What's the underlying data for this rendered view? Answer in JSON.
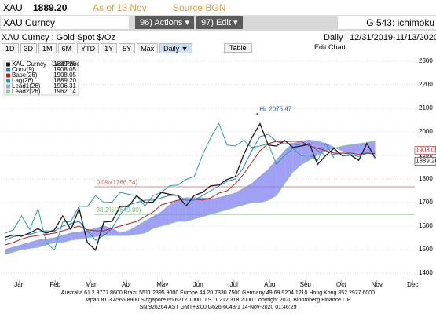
{
  "header": {
    "ticker": "XAU",
    "price": "1889.20",
    "as_of": "As of 13 Nov",
    "source": "Source BGN",
    "security": "XAU Curncy",
    "actions": "96) Actions ▾",
    "edit": "97) Edit ▾",
    "page": "G 543: ichimoku",
    "description": "XAU Curncy : Gold Spot $/Oz",
    "frequency": "Daily",
    "range": "12/31/2019-11/13/2020"
  },
  "toolbar": {
    "periods": [
      "1D",
      "3D",
      "1M",
      "6M",
      "YTD",
      "1Y",
      "5Y",
      "Max"
    ],
    "interval": "Daily ▼",
    "table": "Table",
    "edit_chart": "Edit Chart"
  },
  "chart_data": {
    "type": "line",
    "year_label": "2020",
    "x": [
      0.1,
      0.33,
      0.56,
      0.79,
      1.02,
      1.25,
      1.48,
      1.71,
      1.94,
      2.17,
      2.4,
      2.63,
      2.86,
      3.09,
      3.32,
      3.55,
      3.78,
      4.01,
      4.24,
      4.47,
      4.7,
      4.93,
      5.16,
      5.39,
      5.62,
      5.85,
      6.08,
      6.31,
      6.54,
      6.77,
      7.0,
      7.23,
      7.46,
      7.69,
      7.92,
      8.15,
      8.38,
      8.61,
      8.84,
      9.07,
      9.3,
      9.53,
      9.76,
      9.99,
      10.22,
      10.45
    ],
    "xlim": [
      0,
      11.56
    ],
    "xticks": [
      {
        "value": 0.5,
        "label": "Jan"
      },
      {
        "value": 1.5,
        "label": "Feb"
      },
      {
        "value": 2.5,
        "label": "Mar"
      },
      {
        "value": 3.5,
        "label": "Apr"
      },
      {
        "value": 4.5,
        "label": "May"
      },
      {
        "value": 5.5,
        "label": "Jun"
      },
      {
        "value": 6.5,
        "label": "Jul"
      },
      {
        "value": 7.5,
        "label": "Aug"
      },
      {
        "value": 8.5,
        "label": "Sep"
      },
      {
        "value": 9.5,
        "label": "Oct"
      },
      {
        "value": 10.5,
        "label": "Nov"
      },
      {
        "value": 11.5,
        "label": "Dec"
      }
    ],
    "ylim": [
      1370,
      2330
    ],
    "yticks": [
      1400,
      1500,
      1600,
      1700,
      1800,
      1900,
      2000,
      2100,
      2200,
      2300
    ],
    "grid": true,
    "series": [
      {
        "name": "XAU Curncy - Last Price",
        "last": {
          "value": 1889.2,
          "label": "1889.20"
        },
        "color": "#1a1a1a",
        "values": [
          1552,
          1562,
          1557,
          1571,
          1589,
          1570,
          1584,
          1643,
          1585,
          1674,
          1530,
          1498,
          1617,
          1620,
          1684,
          1683,
          1729,
          1700,
          1702,
          1743,
          1735,
          1730,
          1685,
          1730,
          1743,
          1771,
          1774,
          1798,
          1810,
          1902,
          1975,
          2035,
          1944,
          1940,
          1964,
          1934,
          1940,
          1950,
          1862,
          1900,
          1930,
          1899,
          1902,
          1879,
          1951,
          1889
        ]
      },
      {
        "name": "Conv(9)",
        "last": {
          "value": 1908.05,
          "label": "1908.05"
        },
        "color": "#2b7fb8",
        "values": [
          1540,
          1555,
          1560,
          1565,
          1575,
          1580,
          1578,
          1600,
          1610,
          1620,
          1580,
          1540,
          1560,
          1590,
          1650,
          1690,
          1700,
          1710,
          1710,
          1720,
          1730,
          1730,
          1710,
          1710,
          1730,
          1750,
          1770,
          1790,
          1800,
          1850,
          1920,
          1980,
          1990,
          1960,
          1950,
          1950,
          1940,
          1945,
          1920,
          1900,
          1905,
          1910,
          1905,
          1895,
          1910,
          1908
        ]
      },
      {
        "name": "Base(26)",
        "last": {
          "value": 1908.05,
          "label": "1908.05"
        },
        "color": "#b22222",
        "values": [
          1520,
          1530,
          1545,
          1555,
          1560,
          1565,
          1570,
          1580,
          1590,
          1600,
          1585,
          1580,
          1580,
          1590,
          1600,
          1610,
          1620,
          1640,
          1660,
          1690,
          1700,
          1710,
          1715,
          1715,
          1710,
          1720,
          1740,
          1750,
          1780,
          1820,
          1870,
          1920,
          1950,
          1960,
          1960,
          1960,
          1960,
          1940,
          1930,
          1920,
          1910,
          1910,
          1910,
          1905,
          1910,
          1908
        ]
      },
      {
        "name": "Lag(26)",
        "last": {
          "value": 1889.2,
          "label": "1889.20"
        },
        "color": "#2b9aa8",
        "values": [
          1570,
          1584,
          1643,
          1585,
          1674,
          1530,
          1498,
          1617,
          1620,
          1684,
          1683,
          1729,
          1700,
          1702,
          1743,
          1735,
          1730,
          1685,
          1730,
          1743,
          1771,
          1774,
          1798,
          1810,
          1902,
          1975,
          2035,
          1944,
          1940,
          1964,
          1934,
          1940,
          1950,
          1862,
          1900,
          1930,
          1899,
          1902,
          1879,
          1951,
          1889,
          null,
          null,
          null,
          null,
          null
        ]
      },
      {
        "name": "Lead1(26)",
        "last": {
          "value": 1906.31,
          "label": "1906.31"
        },
        "color": "#8fa8e0",
        "values": [
          1500,
          1510,
          1520,
          1530,
          1540,
          1545,
          1550,
          1560,
          1570,
          1575,
          1580,
          1590,
          1600,
          1590,
          1570,
          1580,
          1600,
          1620,
          1640,
          1660,
          1690,
          1710,
          1720,
          1720,
          1720,
          1715,
          1720,
          1730,
          1740,
          1760,
          1780,
          1810,
          1840,
          1880,
          1920,
          1950,
          1960,
          1965,
          1960,
          1950,
          1935,
          1920,
          1910,
          1910,
          1908,
          1906
        ]
      },
      {
        "name": "Lead2(26)",
        "last": {
          "value": 1962.14,
          "label": "1962.14"
        },
        "color": "#90d090",
        "values": [
          1480,
          1490,
          1500,
          1505,
          1510,
          1520,
          1530,
          1530,
          1540,
          1545,
          1550,
          1555,
          1560,
          1560,
          1560,
          1560,
          1565,
          1570,
          1590,
          1600,
          1610,
          1620,
          1620,
          1630,
          1640,
          1650,
          1660,
          1670,
          1680,
          1690,
          1700,
          1700,
          1710,
          1730,
          1780,
          1830,
          1860,
          1880,
          1900,
          1920,
          1930,
          1940,
          1945,
          1950,
          1955,
          1962
        ]
      }
    ],
    "cloud_color": "#8080f0",
    "annotations": [
      {
        "text": "Hi: 2075.47",
        "x": 7.15,
        "y": 2075.47
      }
    ],
    "levels": [
      {
        "label": "0.0%(1766.74)",
        "value": 1766.74,
        "color": "#d06060"
      },
      {
        "label": "38.2%(1649.80)",
        "value": 1649.8,
        "color": "#70c070"
      }
    ]
  },
  "footer": [
    "Australia 61 2 9777 8600 Brazil 5511 2395 9000 Europe 44 20 7330 7500 Germany 49 69 9204 1210 Hong Kong 852 2977 6000",
    "Japan 81 3 4565 8900      Singapore 65 6212 1000      U.S. 1 212 318 2000      Copyright 2020 Bloomberg Finance L.P.",
    "SN 926264 AST  GMT+3:00 G626-6043-1 14-Nov-2020 01:46:29"
  ]
}
